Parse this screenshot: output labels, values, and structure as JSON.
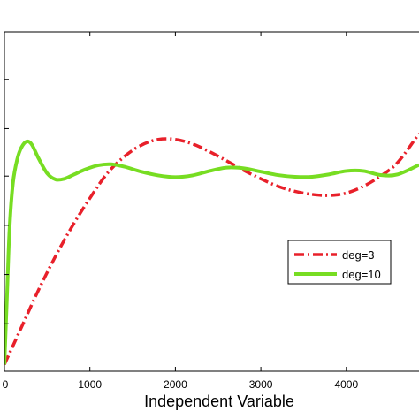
{
  "chart_data": {
    "type": "line",
    "title": "",
    "xlabel": "Independent Variable",
    "ylabel": "",
    "xlim": [
      0,
      4850
    ],
    "ylim": [
      0,
      1
    ],
    "x_ticks": [
      0,
      1000,
      2000,
      3000,
      4000
    ],
    "x_tick_labels": [
      "0",
      "1000",
      "2000",
      "3000",
      "4000"
    ],
    "y_ticks": [
      0.0,
      0.14,
      0.285,
      0.43,
      0.575,
      0.715,
      0.86,
      1.0
    ],
    "grid": false,
    "legend_position": "lower-right",
    "series": [
      {
        "name": "deg=3",
        "color": "#e8202a",
        "style": "dash-dot",
        "x": [
          0,
          200,
          400,
          600,
          800,
          1000,
          1200,
          1400,
          1600,
          1800,
          2000,
          2200,
          2400,
          2600,
          2800,
          3000,
          3200,
          3400,
          3600,
          3800,
          4000,
          4200,
          4400,
          4600,
          4850
        ],
        "y": [
          0.02,
          0.13,
          0.24,
          0.34,
          0.43,
          0.51,
          0.582,
          0.632,
          0.666,
          0.683,
          0.683,
          0.67,
          0.647,
          0.62,
          0.592,
          0.567,
          0.545,
          0.53,
          0.521,
          0.518,
          0.525,
          0.545,
          0.575,
          0.615,
          0.7
        ]
      },
      {
        "name": "deg=10",
        "color": "#77dd22",
        "style": "solid",
        "x": [
          0,
          30,
          60,
          100,
          150,
          200,
          260,
          320,
          400,
          500,
          600,
          700,
          800,
          950,
          1100,
          1250,
          1400,
          1600,
          1800,
          2000,
          2200,
          2400,
          2600,
          2800,
          3000,
          3200,
          3400,
          3600,
          3800,
          4000,
          4200,
          4400,
          4600,
          4850
        ],
        "y": [
          0.02,
          0.22,
          0.42,
          0.555,
          0.625,
          0.66,
          0.677,
          0.668,
          0.627,
          0.583,
          0.565,
          0.567,
          0.578,
          0.595,
          0.607,
          0.61,
          0.603,
          0.588,
          0.577,
          0.572,
          0.577,
          0.59,
          0.6,
          0.598,
          0.588,
          0.578,
          0.573,
          0.573,
          0.58,
          0.59,
          0.59,
          0.578,
          0.58,
          0.608
        ]
      }
    ]
  }
}
